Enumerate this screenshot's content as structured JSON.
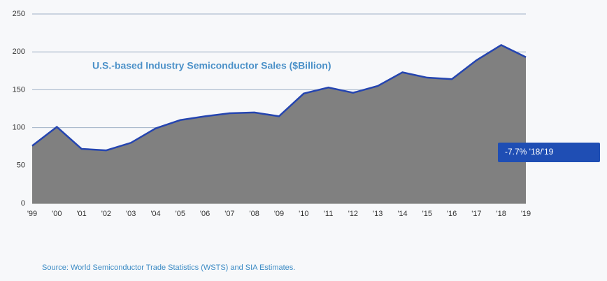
{
  "chart_data": {
    "type": "area",
    "title": "U.S.-based Industry Semiconductor Sales ($Billion)",
    "categories": [
      "'99",
      "'00",
      "'01",
      "'02",
      "'03",
      "'04",
      "'05",
      "'06",
      "'07",
      "'08",
      "'09",
      "'10",
      "'11",
      "'12",
      "'13",
      "'14",
      "'15",
      "'16",
      "'17",
      "'18",
      "'19"
    ],
    "values": [
      76,
      101,
      72,
      70,
      80,
      99,
      110,
      115,
      119,
      120,
      115,
      145,
      153,
      146,
      155,
      173,
      166,
      164,
      189,
      209,
      193
    ],
    "color": "#808080",
    "line_color": "#2545b0",
    "ylim": [
      0,
      250
    ],
    "yticks": [
      0,
      50,
      100,
      150,
      200,
      250
    ],
    "grid": true,
    "annotation": "-7.7% '18/'19",
    "source": "Source: World Semiconductor Trade Statistics (WSTS) and SIA Estimates."
  }
}
